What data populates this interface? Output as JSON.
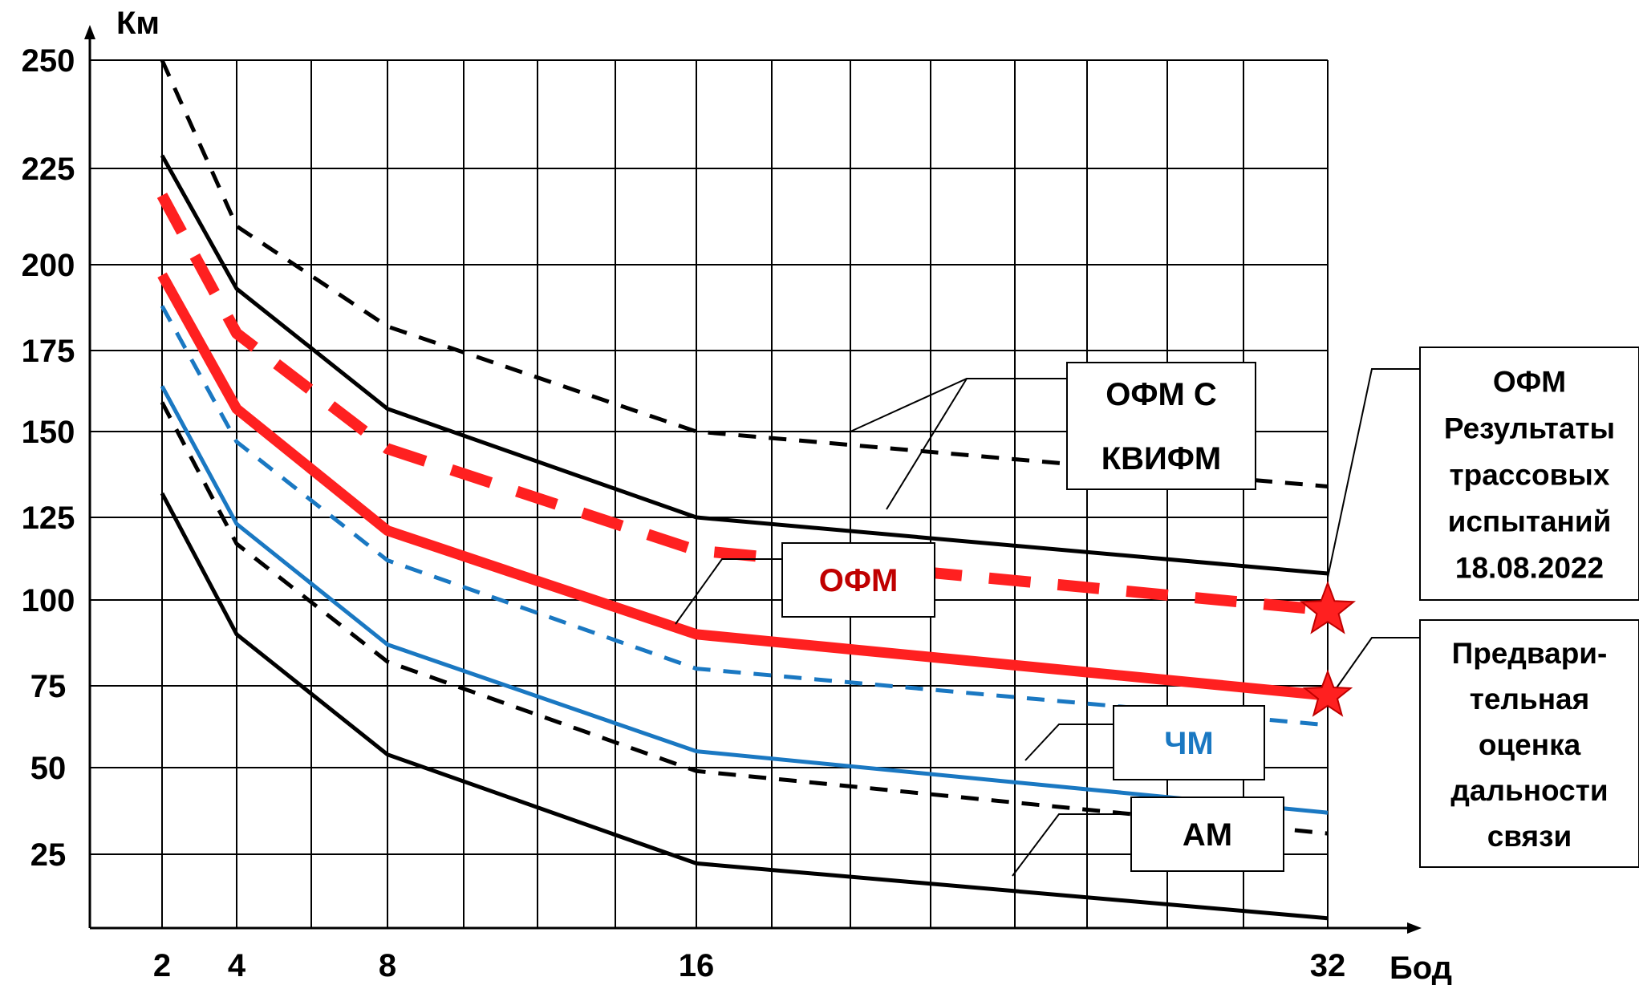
{
  "chart_data": {
    "type": "line",
    "ylabel": "Км",
    "xlabel": "Бод",
    "x_ticks": [
      2,
      4,
      8,
      16,
      32
    ],
    "y_ticks": [
      25,
      50,
      75,
      100,
      125,
      150,
      175,
      200,
      225,
      250
    ],
    "xlim": [
      0,
      34
    ],
    "ylim": [
      0,
      250
    ],
    "grid": true,
    "series": [
      {
        "key": "ofm_kvifm_upper",
        "style": "dashed",
        "color": "#000000",
        "x": [
          2,
          4,
          8,
          16,
          20,
          32
        ],
        "y": [
          250,
          210,
          182,
          150,
          146,
          134
        ]
      },
      {
        "key": "ofm_kvifm_lower",
        "style": "solid",
        "color": "#000000",
        "x": [
          2,
          4,
          8,
          16,
          32
        ],
        "y": [
          228,
          193,
          157,
          125,
          108
        ]
      },
      {
        "key": "ofm_red_dashed",
        "style": "dashed-thick",
        "color": "#ff2020",
        "x": [
          2,
          4,
          8,
          16,
          32
        ],
        "y": [
          218,
          180,
          145,
          115,
          97
        ]
      },
      {
        "key": "ofm_red_solid",
        "style": "solid-thick",
        "color": "#ff2020",
        "x": [
          2,
          4,
          8,
          16,
          32
        ],
        "y": [
          197,
          157,
          121,
          90,
          72
        ]
      },
      {
        "key": "chm_dashed",
        "style": "dashed",
        "color": "#1a78c2",
        "x": [
          2,
          4,
          8,
          16,
          32
        ],
        "y": [
          188,
          147,
          112,
          80,
          63
        ]
      },
      {
        "key": "chm_solid",
        "style": "solid",
        "color": "#1a78c2",
        "x": [
          2,
          4,
          8,
          16,
          32
        ],
        "y": [
          164,
          123,
          87,
          55,
          37
        ]
      },
      {
        "key": "am_dashed",
        "style": "dashed",
        "color": "#000000",
        "x": [
          2,
          4,
          8,
          16,
          32
        ],
        "y": [
          159,
          117,
          82,
          49,
          31
        ]
      },
      {
        "key": "am_solid",
        "style": "solid",
        "color": "#000000",
        "x": [
          2,
          4,
          8,
          16,
          32
        ],
        "y": [
          132,
          90,
          54,
          22,
          4
        ]
      }
    ],
    "stars": [
      {
        "key": "star_test",
        "x": 32,
        "y": 97,
        "color": "#ff2020"
      },
      {
        "key": "star_estimate",
        "x": 32,
        "y": 72,
        "color": "#ff2020"
      }
    ],
    "labels": [
      {
        "key": "label_ofm_kvifm",
        "lines": [
          "ОФМ С",
          "КВИФМ"
        ],
        "color": "#000000"
      },
      {
        "key": "label_ofm",
        "lines": [
          "ОФМ"
        ],
        "color": "#c00000"
      },
      {
        "key": "label_chm",
        "lines": [
          "ЧМ"
        ],
        "color": "#1a78c2"
      },
      {
        "key": "label_am",
        "lines": [
          "АМ"
        ],
        "color": "#000000"
      }
    ],
    "notes": [
      {
        "key": "note_test",
        "lines": [
          "ОФМ",
          "Результаты",
          "трассовых",
          "испытаний",
          "18.08.2022"
        ]
      },
      {
        "key": "note_estimate",
        "lines": [
          "Предвари-",
          "тельная",
          "оценка",
          "дальности",
          "связи"
        ]
      }
    ]
  }
}
